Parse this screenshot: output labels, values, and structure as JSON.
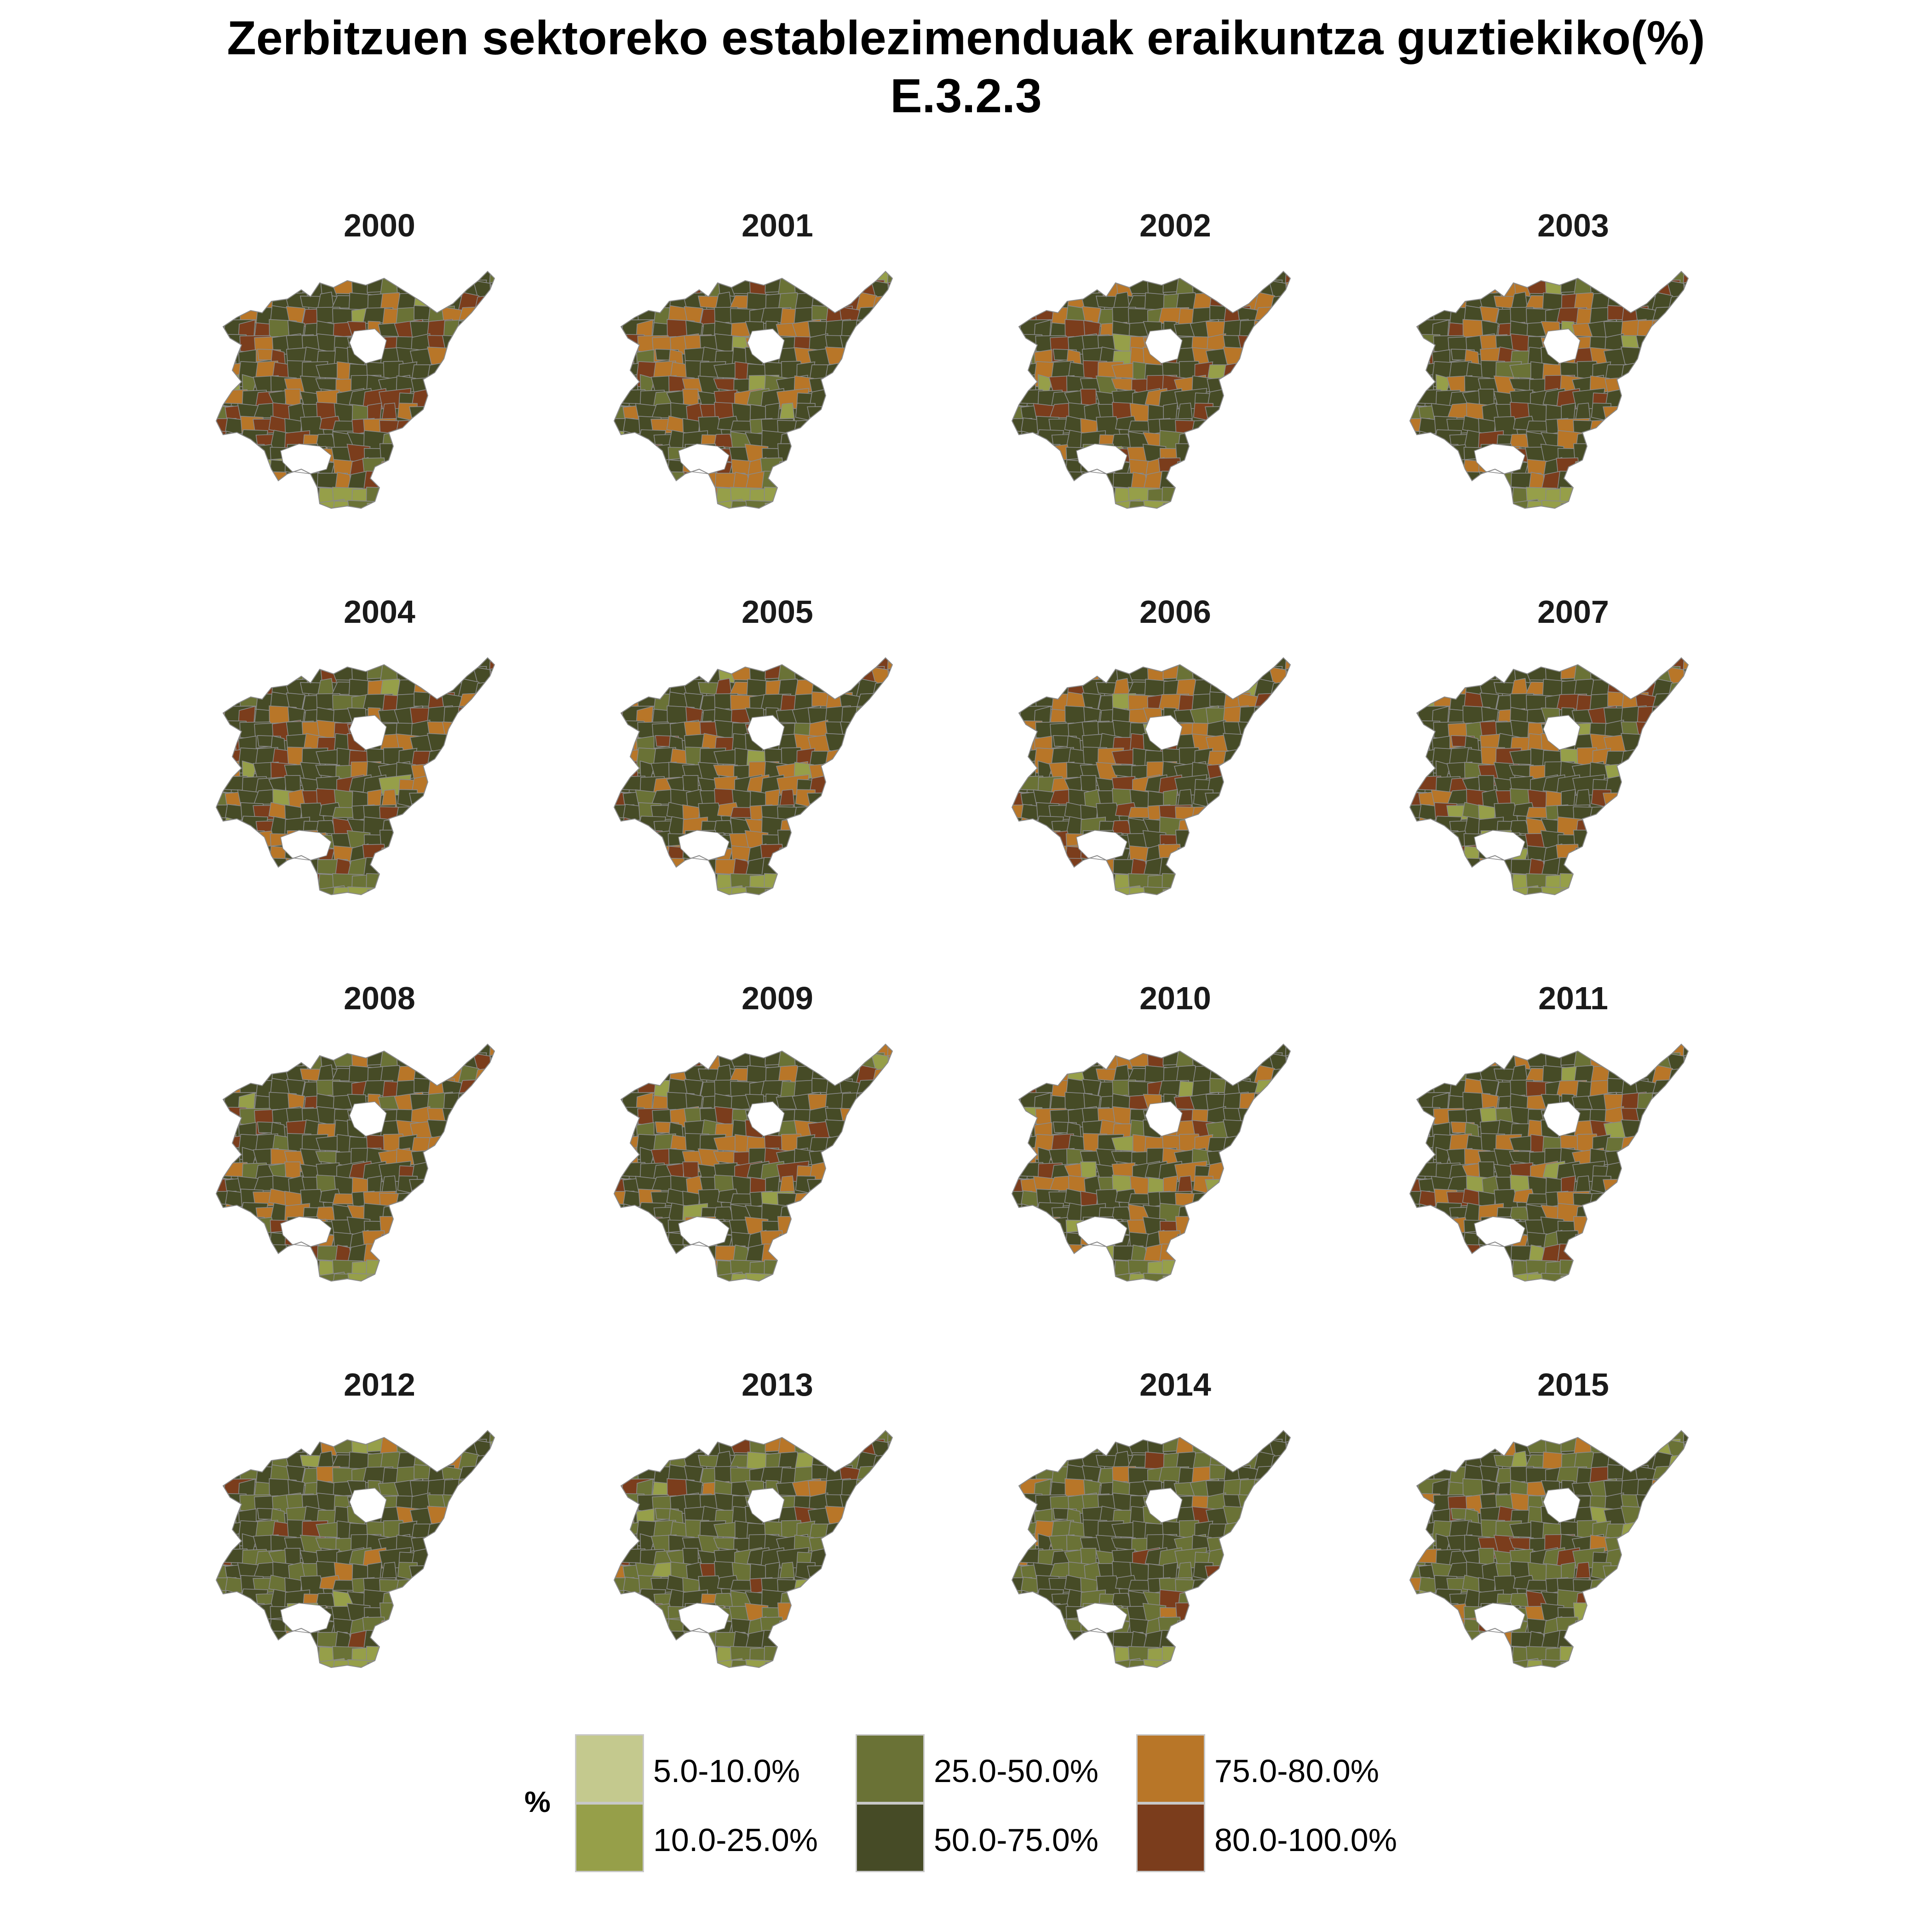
{
  "title": {
    "line1": "Zerbitzuen sektoreko establezimenduak eraikuntza guztiekiko(%)",
    "line2": "E.3.2.3"
  },
  "colors": {
    "c1": "#c4c98e",
    "c2": "#969f49",
    "c3": "#6a7236",
    "c4": "#464b26",
    "c5": "#b87628",
    "c6": "#7b3d1c",
    "border": "#8a8a8a"
  },
  "legend": {
    "title": "%",
    "items": [
      {
        "label": "5.0-10.0%",
        "color": "c1"
      },
      {
        "label": "10.0-25.0%",
        "color": "c2"
      },
      {
        "label": "25.0-50.0%",
        "color": "c3"
      },
      {
        "label": "50.0-75.0%",
        "color": "c4"
      },
      {
        "label": "75.0-80.0%",
        "color": "c5"
      },
      {
        "label": "80.0-100.0%",
        "color": "c6"
      }
    ]
  },
  "panels": [
    {
      "year": "2000",
      "classes": {
        "c4": 0.58,
        "c5": 0.18,
        "c6": 0.16,
        "c3": 0.05,
        "c2": 0.03
      }
    },
    {
      "year": "2001",
      "classes": {
        "c4": 0.58,
        "c5": 0.19,
        "c6": 0.15,
        "c3": 0.05,
        "c2": 0.03
      }
    },
    {
      "year": "2002",
      "classes": {
        "c4": 0.57,
        "c5": 0.22,
        "c6": 0.13,
        "c3": 0.05,
        "c2": 0.03
      }
    },
    {
      "year": "2003",
      "classes": {
        "c4": 0.57,
        "c5": 0.24,
        "c6": 0.11,
        "c3": 0.05,
        "c2": 0.03
      }
    },
    {
      "year": "2004",
      "classes": {
        "c4": 0.57,
        "c5": 0.21,
        "c6": 0.14,
        "c3": 0.05,
        "c2": 0.03
      }
    },
    {
      "year": "2005",
      "classes": {
        "c4": 0.58,
        "c5": 0.21,
        "c6": 0.13,
        "c3": 0.05,
        "c2": 0.03
      }
    },
    {
      "year": "2006",
      "classes": {
        "c4": 0.59,
        "c5": 0.22,
        "c6": 0.11,
        "c3": 0.05,
        "c2": 0.03
      }
    },
    {
      "year": "2007",
      "classes": {
        "c4": 0.6,
        "c5": 0.2,
        "c6": 0.12,
        "c3": 0.05,
        "c2": 0.03
      }
    },
    {
      "year": "2008",
      "classes": {
        "c4": 0.6,
        "c5": 0.21,
        "c6": 0.11,
        "c3": 0.05,
        "c2": 0.03
      }
    },
    {
      "year": "2009",
      "classes": {
        "c4": 0.62,
        "c5": 0.21,
        "c6": 0.09,
        "c3": 0.05,
        "c2": 0.03
      }
    },
    {
      "year": "2010",
      "classes": {
        "c4": 0.63,
        "c5": 0.2,
        "c6": 0.09,
        "c3": 0.05,
        "c2": 0.03
      }
    },
    {
      "year": "2011",
      "classes": {
        "c4": 0.63,
        "c5": 0.19,
        "c6": 0.1,
        "c3": 0.05,
        "c2": 0.03
      }
    },
    {
      "year": "2012",
      "classes": {
        "c4": 0.52,
        "c3": 0.36,
        "c5": 0.07,
        "c6": 0.02,
        "c2": 0.03
      }
    },
    {
      "year": "2013",
      "classes": {
        "c4": 0.48,
        "c3": 0.38,
        "c5": 0.06,
        "c6": 0.05,
        "c2": 0.03
      }
    },
    {
      "year": "2014",
      "classes": {
        "c4": 0.48,
        "c3": 0.38,
        "c5": 0.06,
        "c6": 0.05,
        "c2": 0.03
      }
    },
    {
      "year": "2015",
      "classes": {
        "c4": 0.49,
        "c3": 0.37,
        "c5": 0.06,
        "c6": 0.05,
        "c2": 0.03
      }
    }
  ]
}
